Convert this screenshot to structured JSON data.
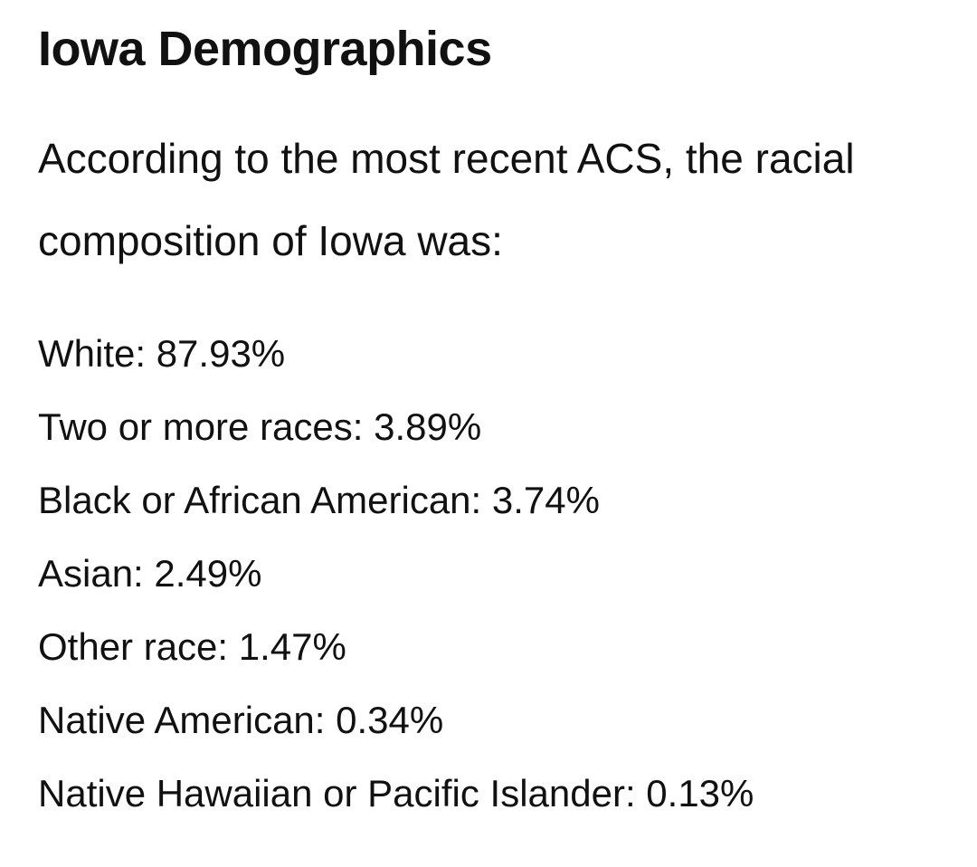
{
  "header": {
    "title": "Iowa Demographics"
  },
  "intro": "According to the most recent ACS, the racial composition of Iowa was:",
  "list": {
    "items": [
      "White: 87.93%",
      "Two or more races: 3.89%",
      "Black or African American: 3.74%",
      "Asian: 2.49%",
      "Other race: 1.47%",
      "Native American: 0.34%",
      "Native Hawaiian or Pacific Islander: 0.13%"
    ]
  }
}
